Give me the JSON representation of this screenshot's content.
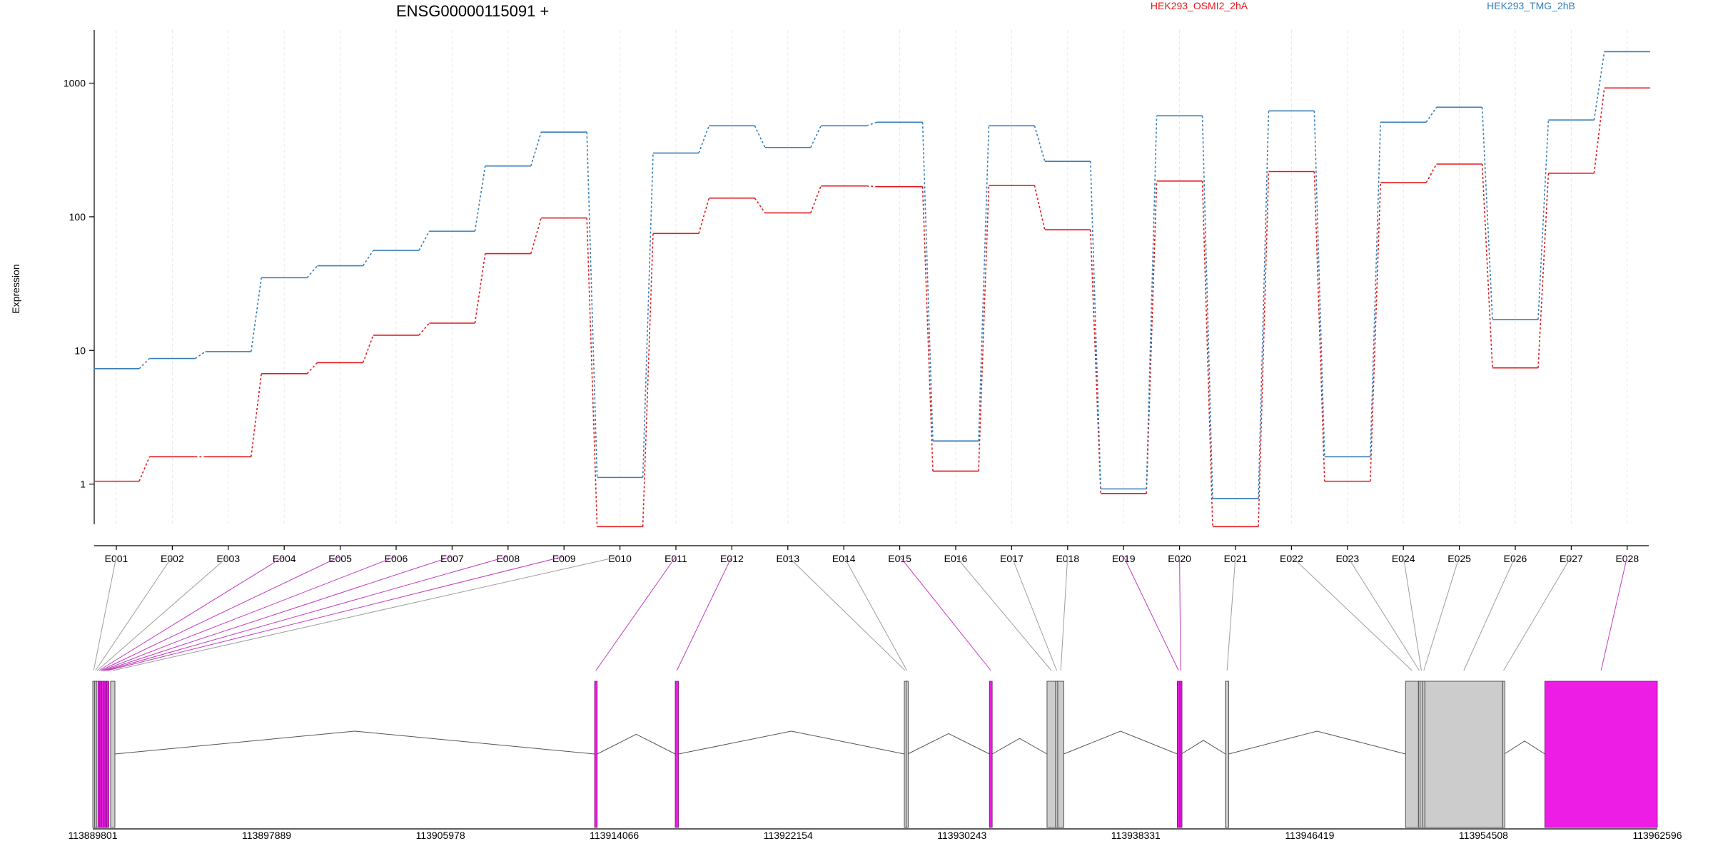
{
  "chart_data": {
    "type": "line",
    "title": "ENSG00000115091 +",
    "xlabel": "",
    "ylabel": "Expression",
    "y_scale": "log",
    "ylim": [
      0.5,
      2500
    ],
    "y_ticks": [
      1,
      10,
      100,
      1000
    ],
    "y_tick_labels": [
      "1",
      "10",
      "100",
      "1000"
    ],
    "grid": true,
    "legend_placement": "top",
    "categories": [
      "E001",
      "E002",
      "E003",
      "E004",
      "E005",
      "E006",
      "E007",
      "E008",
      "E009",
      "E010",
      "E011",
      "E012",
      "E013",
      "E014",
      "E015",
      "E016",
      "E017",
      "E018",
      "E019",
      "E020",
      "E021",
      "E022",
      "E023",
      "E024",
      "E025",
      "E026",
      "E027",
      "E028"
    ],
    "series": [
      {
        "name": "HEK293_OSMI2_2hA",
        "color": "#e31a1c",
        "values": [
          1.05,
          1.6,
          1.6,
          6.7,
          8.1,
          13,
          16,
          53,
          98,
          0.48,
          75,
          138,
          107,
          170,
          168,
          1.25,
          172,
          80,
          0.85,
          185,
          0.48,
          218,
          1.05,
          180,
          248,
          7.4,
          212,
          920
        ]
      },
      {
        "name": "HEK293_TMG_2hB",
        "color": "#377eb8",
        "values": [
          7.3,
          8.7,
          9.8,
          35,
          43,
          56,
          78,
          240,
          430,
          1.12,
          300,
          480,
          330,
          480,
          510,
          2.1,
          480,
          260,
          0.92,
          570,
          0.78,
          620,
          1.6,
          510,
          660,
          17,
          530,
          1720
        ]
      }
    ],
    "gene_axis": {
      "ticks": [
        "113889801",
        "113897889",
        "113905978",
        "113914066",
        "113922154",
        "113930243",
        "113938331",
        "113946419",
        "113954508",
        "113962596"
      ],
      "range": [
        113889801,
        113962596
      ],
      "highlight_color": "#ee1de6",
      "exons": [
        {
          "id": "E001",
          "start": 113889801,
          "end": 113889880,
          "highlight": false
        },
        {
          "id": "E002",
          "start": 113889890,
          "end": 113889960,
          "highlight": false
        },
        {
          "id": "E003",
          "start": 113889970,
          "end": 113890040,
          "highlight": false
        },
        {
          "id": "E004",
          "start": 113890050,
          "end": 113890120,
          "highlight": true
        },
        {
          "id": "E005",
          "start": 113890130,
          "end": 113890200,
          "highlight": true
        },
        {
          "id": "E006",
          "start": 113890210,
          "end": 113890280,
          "highlight": true
        },
        {
          "id": "E007",
          "start": 113890290,
          "end": 113890360,
          "highlight": true
        },
        {
          "id": "E008",
          "start": 113890370,
          "end": 113890440,
          "highlight": true
        },
        {
          "id": "E009",
          "start": 113890450,
          "end": 113890520,
          "highlight": true
        },
        {
          "id": "E010",
          "start": 113890630,
          "end": 113890830,
          "highlight": false
        },
        {
          "id": "E011",
          "start": 113913150,
          "end": 113913270,
          "highlight": true
        },
        {
          "id": "E012",
          "start": 113916900,
          "end": 113917050,
          "highlight": true
        },
        {
          "id": "E013",
          "start": 113927560,
          "end": 113927640,
          "highlight": false
        },
        {
          "id": "E014",
          "start": 113927640,
          "end": 113927720,
          "highlight": false
        },
        {
          "id": "E015",
          "start": 113931520,
          "end": 113931650,
          "highlight": true
        },
        {
          "id": "E016",
          "start": 113934200,
          "end": 113934600,
          "highlight": false
        },
        {
          "id": "E017",
          "start": 113934600,
          "end": 113934700,
          "highlight": false
        },
        {
          "id": "E018",
          "start": 113934700,
          "end": 113934980,
          "highlight": false
        },
        {
          "id": "E019",
          "start": 113940260,
          "end": 113940380,
          "highlight": true
        },
        {
          "id": "E020",
          "start": 113940380,
          "end": 113940450,
          "highlight": true
        },
        {
          "id": "E021",
          "start": 113942500,
          "end": 113942650,
          "highlight": false
        },
        {
          "id": "E022",
          "start": 113950880,
          "end": 113951480,
          "highlight": false
        },
        {
          "id": "E023",
          "start": 113951480,
          "end": 113951560,
          "highlight": false
        },
        {
          "id": "E024",
          "start": 113951560,
          "end": 113951680,
          "highlight": false
        },
        {
          "id": "E025",
          "start": 113951680,
          "end": 113951780,
          "highlight": false
        },
        {
          "id": "E026",
          "start": 113951780,
          "end": 113955400,
          "highlight": false
        },
        {
          "id": "E027",
          "start": 113955400,
          "end": 113955480,
          "highlight": false
        },
        {
          "id": "E028",
          "start": 113957360,
          "end": 113962596,
          "highlight": true
        }
      ]
    }
  }
}
